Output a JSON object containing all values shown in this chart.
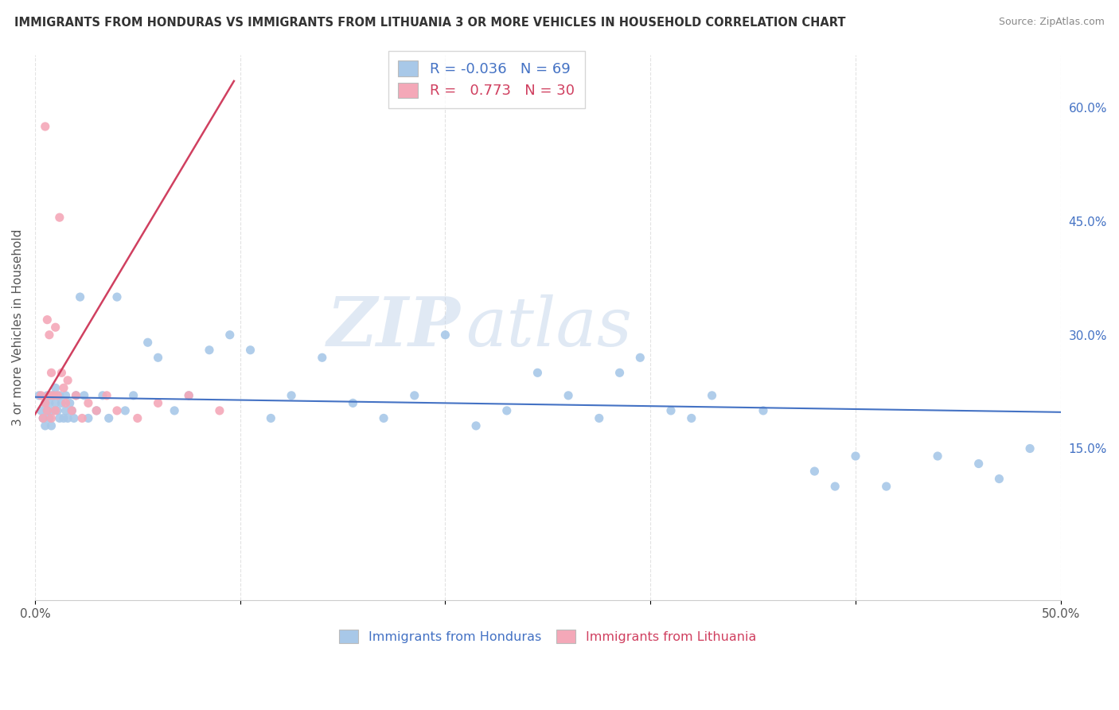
{
  "title": "IMMIGRANTS FROM HONDURAS VS IMMIGRANTS FROM LITHUANIA 3 OR MORE VEHICLES IN HOUSEHOLD CORRELATION CHART",
  "source": "Source: ZipAtlas.com",
  "ylabel": "3 or more Vehicles in Household",
  "xlim": [
    0.0,
    0.5
  ],
  "ylim": [
    -0.05,
    0.67
  ],
  "x_ticks": [
    0.0,
    0.1,
    0.2,
    0.3,
    0.4,
    0.5
  ],
  "x_tick_labels": [
    "0.0%",
    "",
    "",
    "",
    "",
    "50.0%"
  ],
  "y_ticks_right": [
    0.15,
    0.3,
    0.45,
    0.6
  ],
  "y_tick_labels_right": [
    "15.0%",
    "30.0%",
    "45.0%",
    "60.0%"
  ],
  "honduras_color": "#a8c8e8",
  "lithuania_color": "#f4a8b8",
  "honduras_line_color": "#4472c4",
  "lithuania_line_color": "#d04060",
  "R_honduras": -0.036,
  "N_honduras": 69,
  "R_lithuania": 0.773,
  "N_lithuania": 30,
  "watermark_zip": "ZIP",
  "watermark_atlas": "atlas",
  "background_color": "#ffffff",
  "grid_color": "#e0e0e0",
  "hon_x": [
    0.002,
    0.003,
    0.004,
    0.005,
    0.005,
    0.006,
    0.006,
    0.007,
    0.007,
    0.008,
    0.008,
    0.009,
    0.009,
    0.01,
    0.01,
    0.011,
    0.012,
    0.012,
    0.013,
    0.014,
    0.015,
    0.015,
    0.016,
    0.017,
    0.018,
    0.019,
    0.02,
    0.022,
    0.024,
    0.026,
    0.03,
    0.033,
    0.036,
    0.04,
    0.044,
    0.048,
    0.055,
    0.06,
    0.068,
    0.075,
    0.085,
    0.095,
    0.105,
    0.115,
    0.125,
    0.14,
    0.155,
    0.17,
    0.185,
    0.2,
    0.215,
    0.23,
    0.245,
    0.26,
    0.275,
    0.285,
    0.295,
    0.31,
    0.32,
    0.33,
    0.355,
    0.38,
    0.39,
    0.4,
    0.415,
    0.44,
    0.46,
    0.47,
    0.485
  ],
  "hon_y": [
    0.22,
    0.2,
    0.19,
    0.21,
    0.18,
    0.22,
    0.2,
    0.21,
    0.19,
    0.22,
    0.18,
    0.2,
    0.22,
    0.21,
    0.23,
    0.2,
    0.19,
    0.22,
    0.21,
    0.19,
    0.2,
    0.22,
    0.19,
    0.21,
    0.2,
    0.19,
    0.22,
    0.35,
    0.22,
    0.19,
    0.2,
    0.22,
    0.19,
    0.35,
    0.2,
    0.22,
    0.29,
    0.27,
    0.2,
    0.22,
    0.28,
    0.3,
    0.28,
    0.19,
    0.22,
    0.27,
    0.21,
    0.19,
    0.22,
    0.3,
    0.18,
    0.2,
    0.25,
    0.22,
    0.19,
    0.25,
    0.27,
    0.2,
    0.19,
    0.22,
    0.2,
    0.12,
    0.1,
    0.14,
    0.1,
    0.14,
    0.13,
    0.11,
    0.15
  ],
  "lit_x": [
    0.003,
    0.004,
    0.005,
    0.005,
    0.006,
    0.006,
    0.007,
    0.007,
    0.008,
    0.008,
    0.009,
    0.01,
    0.01,
    0.011,
    0.012,
    0.013,
    0.014,
    0.015,
    0.016,
    0.018,
    0.02,
    0.023,
    0.026,
    0.03,
    0.035,
    0.04,
    0.05,
    0.06,
    0.075,
    0.09
  ],
  "lit_y": [
    0.22,
    0.19,
    0.21,
    0.575,
    0.2,
    0.32,
    0.22,
    0.3,
    0.19,
    0.25,
    0.22,
    0.2,
    0.31,
    0.22,
    0.455,
    0.25,
    0.23,
    0.21,
    0.24,
    0.2,
    0.22,
    0.19,
    0.21,
    0.2,
    0.22,
    0.2,
    0.19,
    0.21,
    0.22,
    0.2
  ],
  "hon_line_x": [
    0.0,
    0.5
  ],
  "hon_line_y": [
    0.218,
    0.198
  ],
  "lit_line_x": [
    0.0,
    0.097
  ],
  "lit_line_y": [
    0.195,
    0.635
  ]
}
